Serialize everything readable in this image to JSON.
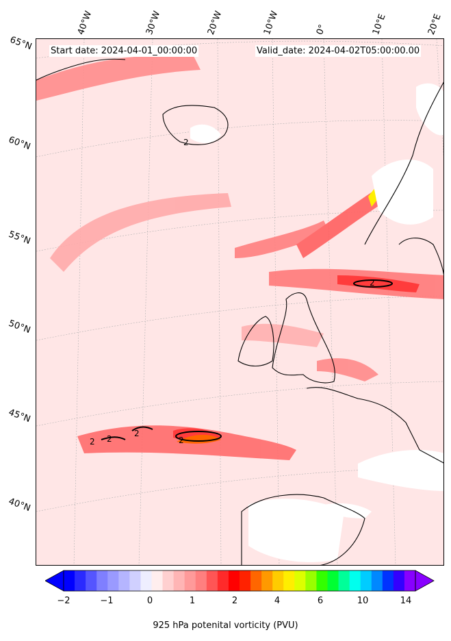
{
  "header": {
    "start_date": "Start date: 2024-04-01_00:00:00",
    "valid_date": "Valid_date: 2024-04-02T05:00:00.00"
  },
  "longitude_labels": [
    "40°W",
    "30°W",
    "20°W",
    "10°W",
    "0°",
    "10°E",
    "20°E"
  ],
  "latitude_labels": [
    "65°N",
    "60°N",
    "55°N",
    "50°N",
    "45°N",
    "40°N"
  ],
  "contour_label": "2",
  "colorbar": {
    "label": "925 hPa potenital vorticity (PVU)",
    "ticks": [
      "−2",
      "−1",
      "0",
      "1",
      "2",
      "4",
      "6",
      "10",
      "14"
    ],
    "colors": [
      "#0000ff",
      "#2a2aff",
      "#5555ff",
      "#7f7fff",
      "#9a9aff",
      "#b5b5ff",
      "#d0d0ff",
      "#eeeeff",
      "#ffeeee",
      "#ffd0d0",
      "#ffb5b5",
      "#ff9a9a",
      "#ff7f7f",
      "#ff5555",
      "#ff2a2a",
      "#ff0000",
      "#ff2200",
      "#ff6600",
      "#ff9900",
      "#ffcc00",
      "#ffee00",
      "#ddff00",
      "#99ff00",
      "#33ff00",
      "#00ff33",
      "#00ff99",
      "#00ffee",
      "#00ccff",
      "#0088ff",
      "#0033ff",
      "#3300ff",
      "#8800ff"
    ]
  }
}
